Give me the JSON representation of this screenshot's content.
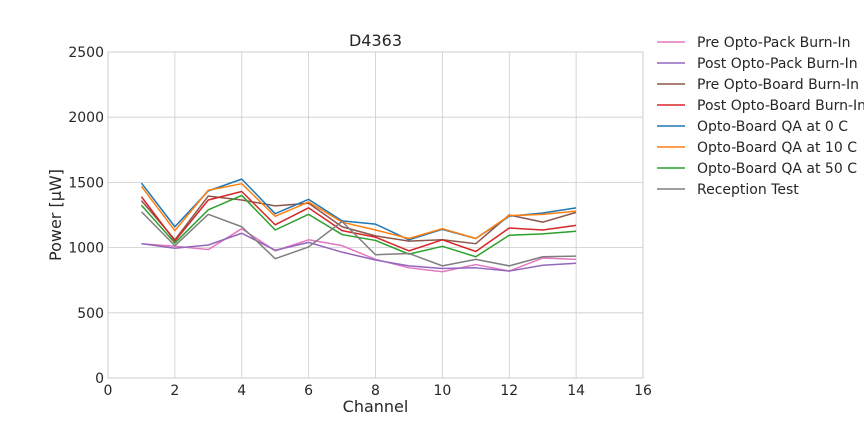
{
  "chart_data": {
    "type": "line",
    "title": "D4363",
    "xlabel": "Channel",
    "ylabel": "Power [µW]",
    "xlim": [
      0,
      16
    ],
    "ylim": [
      0,
      2500
    ],
    "xticks": [
      0,
      2,
      4,
      6,
      8,
      10,
      12,
      14,
      16
    ],
    "yticks": [
      0,
      500,
      1000,
      1500,
      2000,
      2500
    ],
    "grid": true,
    "legend_placement": "outside-right",
    "x": [
      1,
      2,
      3,
      4,
      5,
      6,
      7,
      8,
      9,
      10,
      11,
      12,
      13,
      14
    ],
    "series": [
      {
        "name": "Pre Opto-Pack Burn-In",
        "color": "#e377c2",
        "values": [
          1030,
          1010,
          985,
          1145,
          975,
          1060,
          1015,
          910,
          845,
          815,
          870,
          820,
          920,
          910
        ]
      },
      {
        "name": "Post Opto-Pack Burn-In",
        "color": "#9467bd",
        "values": [
          1030,
          995,
          1020,
          1110,
          980,
          1040,
          965,
          905,
          860,
          840,
          845,
          820,
          865,
          880
        ]
      },
      {
        "name": "Pre Opto-Board Burn-In",
        "color": "#8c564b",
        "values": [
          1360,
          1060,
          1395,
          1365,
          1320,
          1340,
          1160,
          1090,
          1050,
          1060,
          1030,
          1250,
          1195,
          1270
        ]
      },
      {
        "name": "Post Opto-Board Burn-In",
        "color": "#d62728",
        "values": [
          1390,
          1050,
          1365,
          1430,
          1175,
          1305,
          1130,
          1080,
          975,
          1060,
          970,
          1150,
          1135,
          1170
        ]
      },
      {
        "name": "Opto-Board QA at 0 C",
        "color": "#1f77b4",
        "values": [
          1495,
          1160,
          1435,
          1525,
          1260,
          1370,
          1205,
          1180,
          1060,
          1140,
          1070,
          1240,
          1265,
          1305
        ]
      },
      {
        "name": "Opto-Board QA at 10 C",
        "color": "#ff7f0e",
        "values": [
          1470,
          1130,
          1440,
          1490,
          1240,
          1350,
          1195,
          1135,
          1070,
          1145,
          1070,
          1245,
          1255,
          1280
        ]
      },
      {
        "name": "Opto-Board QA at 50 C",
        "color": "#2ca02c",
        "values": [
          1325,
          1035,
          1290,
          1400,
          1135,
          1255,
          1100,
          1055,
          950,
          1010,
          930,
          1095,
          1105,
          1125
        ]
      },
      {
        "name": "Reception Test",
        "color": "#7f7f7f",
        "values": [
          1275,
          1015,
          1255,
          1160,
          915,
          1005,
          1200,
          945,
          955,
          860,
          910,
          860,
          930,
          935
        ]
      }
    ]
  }
}
